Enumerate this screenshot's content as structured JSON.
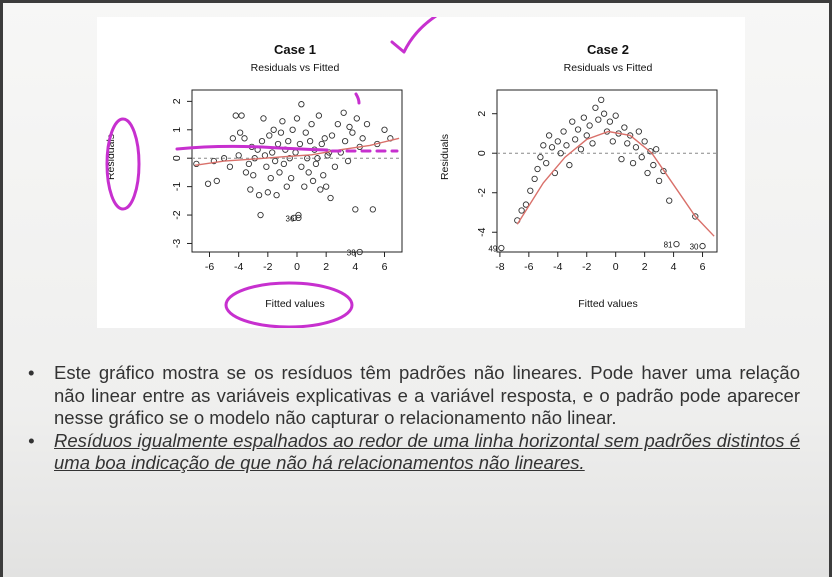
{
  "bullets": [
    "Este gráfico mostra se os resíduos têm padrões não lineares. Pode haver uma relação não linear entre as variáveis explicativas e a variável resposta, e o padrão pode aparecer nesse gráfico se o modelo não capturar o relacionamento não linear.",
    "Resíduos igualmente espalhados ao redor de uma linha horizontal sem padrões distintos é uma boa indicação de que não há relacionamentos não lineares."
  ],
  "annotation_color": "#c730cf",
  "smoother_color": "#d9706a",
  "chart_data": [
    {
      "type": "scatter",
      "title": "Case 1",
      "subtitle": "Residuals vs Fitted",
      "xlabel": "Fitted values",
      "ylabel": "Residuals",
      "xlim": [
        -7.2,
        7.2
      ],
      "ylim": [
        -3.3,
        2.4
      ],
      "xticks": [
        -6,
        -4,
        -2,
        0,
        2,
        4,
        6
      ],
      "yticks": [
        -3,
        -2,
        -1,
        0,
        1,
        2
      ],
      "labeled_points": [
        {
          "label": "36",
          "x": 0.1,
          "y": -2.1
        },
        {
          "label": "38",
          "x": 4.3,
          "y": -3.3
        }
      ],
      "points": [
        [
          -6.9,
          -0.2
        ],
        [
          -6.1,
          -0.9
        ],
        [
          -5.7,
          -0.1
        ],
        [
          -5.5,
          -0.8
        ],
        [
          -5.0,
          0.0
        ],
        [
          -4.6,
          -0.3
        ],
        [
          -4.4,
          0.7
        ],
        [
          -4.2,
          1.5
        ],
        [
          -4.0,
          0.1
        ],
        [
          -3.9,
          0.9
        ],
        [
          -3.8,
          1.5
        ],
        [
          -3.6,
          0.7
        ],
        [
          -3.5,
          -0.5
        ],
        [
          -3.3,
          -0.2
        ],
        [
          -3.2,
          -1.1
        ],
        [
          -3.1,
          0.4
        ],
        [
          -3.0,
          -0.6
        ],
        [
          -2.9,
          0.0
        ],
        [
          -2.7,
          0.3
        ],
        [
          -2.6,
          -1.3
        ],
        [
          -2.5,
          -2.0
        ],
        [
          -2.4,
          0.6
        ],
        [
          -2.3,
          1.4
        ],
        [
          -2.2,
          0.1
        ],
        [
          -2.1,
          -0.3
        ],
        [
          -2.0,
          -1.2
        ],
        [
          -1.9,
          0.8
        ],
        [
          -1.8,
          -0.7
        ],
        [
          -1.7,
          0.2
        ],
        [
          -1.6,
          1.0
        ],
        [
          -1.5,
          -0.1
        ],
        [
          -1.4,
          -1.3
        ],
        [
          -1.3,
          0.5
        ],
        [
          -1.2,
          -0.5
        ],
        [
          -1.1,
          0.9
        ],
        [
          -1.0,
          1.3
        ],
        [
          -0.9,
          -0.2
        ],
        [
          -0.8,
          0.3
        ],
        [
          -0.7,
          -1.0
        ],
        [
          -0.6,
          0.6
        ],
        [
          -0.5,
          0.0
        ],
        [
          -0.4,
          -0.7
        ],
        [
          -0.3,
          1.0
        ],
        [
          -0.2,
          -2.1
        ],
        [
          -0.1,
          0.2
        ],
        [
          0.0,
          1.4
        ],
        [
          0.1,
          -2.0
        ],
        [
          0.2,
          0.5
        ],
        [
          0.3,
          -0.3
        ],
        [
          0.3,
          1.9
        ],
        [
          0.5,
          -1.0
        ],
        [
          0.6,
          0.9
        ],
        [
          0.7,
          0.0
        ],
        [
          0.8,
          -0.5
        ],
        [
          0.9,
          0.6
        ],
        [
          1.0,
          1.2
        ],
        [
          1.1,
          -0.8
        ],
        [
          1.2,
          0.3
        ],
        [
          1.3,
          -0.2
        ],
        [
          1.4,
          0.0
        ],
        [
          1.5,
          1.5
        ],
        [
          1.6,
          -1.1
        ],
        [
          1.7,
          0.5
        ],
        [
          1.8,
          -0.6
        ],
        [
          1.9,
          0.7
        ],
        [
          2.0,
          -1.0
        ],
        [
          2.1,
          0.1
        ],
        [
          2.2,
          0.2
        ],
        [
          2.3,
          -1.4
        ],
        [
          2.4,
          0.8
        ],
        [
          2.6,
          -0.3
        ],
        [
          2.8,
          1.2
        ],
        [
          3.0,
          0.2
        ],
        [
          3.2,
          1.6
        ],
        [
          3.3,
          0.6
        ],
        [
          3.5,
          -0.1
        ],
        [
          3.6,
          1.1
        ],
        [
          3.8,
          0.9
        ],
        [
          4.0,
          -1.8
        ],
        [
          4.1,
          1.4
        ],
        [
          4.3,
          0.4
        ],
        [
          4.5,
          0.7
        ],
        [
          4.8,
          1.2
        ],
        [
          5.2,
          -1.8
        ],
        [
          5.5,
          0.5
        ],
        [
          6.0,
          1.0
        ],
        [
          6.4,
          0.7
        ]
      ],
      "smoother": [
        [
          -7.0,
          -0.25
        ],
        [
          -5.0,
          -0.1
        ],
        [
          -3.0,
          -0.03
        ],
        [
          -1.0,
          0.05
        ],
        [
          1.0,
          0.12
        ],
        [
          3.0,
          0.3
        ],
        [
          5.0,
          0.45
        ],
        [
          7.0,
          0.7
        ]
      ]
    },
    {
      "type": "scatter",
      "title": "Case 2",
      "subtitle": "Residuals vs Fitted",
      "xlabel": "Fitted values",
      "ylabel": "Residuals",
      "xlim": [
        -8.2,
        7.0
      ],
      "ylim": [
        -5.0,
        3.2
      ],
      "xticks": [
        -8,
        -6,
        -4,
        -2,
        0,
        2,
        4,
        6
      ],
      "yticks": [
        -4,
        -2,
        0,
        2
      ],
      "labeled_points": [
        {
          "label": "49",
          "x": -7.9,
          "y": -4.8
        },
        {
          "label": "81",
          "x": 4.2,
          "y": -4.6
        },
        {
          "label": "30",
          "x": 6.0,
          "y": -4.7
        }
      ],
      "points": [
        [
          -6.8,
          -3.4
        ],
        [
          -6.5,
          -2.9
        ],
        [
          -6.2,
          -2.6
        ],
        [
          -5.9,
          -1.9
        ],
        [
          -5.6,
          -1.3
        ],
        [
          -5.4,
          -0.8
        ],
        [
          -5.2,
          -0.2
        ],
        [
          -5.0,
          0.4
        ],
        [
          -4.8,
          -0.5
        ],
        [
          -4.6,
          0.9
        ],
        [
          -4.4,
          0.3
        ],
        [
          -4.2,
          -1.0
        ],
        [
          -4.0,
          0.6
        ],
        [
          -3.8,
          0.0
        ],
        [
          -3.6,
          1.1
        ],
        [
          -3.4,
          0.4
        ],
        [
          -3.2,
          -0.6
        ],
        [
          -3.0,
          1.6
        ],
        [
          -2.8,
          0.7
        ],
        [
          -2.6,
          1.2
        ],
        [
          -2.4,
          0.2
        ],
        [
          -2.2,
          1.8
        ],
        [
          -2.0,
          0.9
        ],
        [
          -1.8,
          1.4
        ],
        [
          -1.6,
          0.5
        ],
        [
          -1.4,
          2.3
        ],
        [
          -1.2,
          1.7
        ],
        [
          -1.0,
          2.7
        ],
        [
          -0.8,
          2.0
        ],
        [
          -0.6,
          1.1
        ],
        [
          -0.4,
          1.6
        ],
        [
          -0.2,
          0.6
        ],
        [
          0.0,
          1.9
        ],
        [
          0.2,
          1.0
        ],
        [
          0.4,
          -0.3
        ],
        [
          0.6,
          1.3
        ],
        [
          0.8,
          0.5
        ],
        [
          1.0,
          0.9
        ],
        [
          1.2,
          -0.5
        ],
        [
          1.4,
          0.3
        ],
        [
          1.6,
          1.1
        ],
        [
          1.8,
          -0.2
        ],
        [
          2.0,
          0.6
        ],
        [
          2.2,
          -1.0
        ],
        [
          2.4,
          0.1
        ],
        [
          2.6,
          -0.6
        ],
        [
          2.8,
          0.2
        ],
        [
          3.0,
          -1.4
        ],
        [
          3.3,
          -0.9
        ],
        [
          3.7,
          -2.4
        ],
        [
          5.5,
          -3.2
        ]
      ],
      "smoother": [
        [
          -6.8,
          -3.6
        ],
        [
          -5.0,
          -1.5
        ],
        [
          -3.5,
          -0.2
        ],
        [
          -2.0,
          0.7
        ],
        [
          -0.5,
          1.1
        ],
        [
          1.0,
          0.9
        ],
        [
          2.5,
          0.0
        ],
        [
          4.0,
          -1.6
        ],
        [
          5.5,
          -3.2
        ],
        [
          6.8,
          -4.2
        ]
      ]
    }
  ]
}
